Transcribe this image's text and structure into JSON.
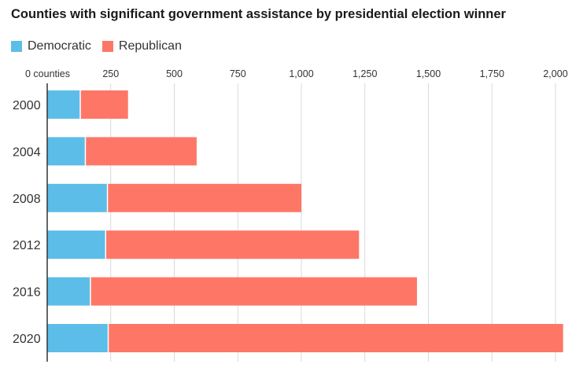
{
  "title": "Counties with significant government assistance by presidential election winner",
  "legend": [
    {
      "label": "Democratic",
      "color": "#5cbde8"
    },
    {
      "label": "Republican",
      "color": "#fe7766"
    }
  ],
  "chart_data": {
    "type": "bar",
    "orientation": "horizontal",
    "stacked": true,
    "title": "Counties with significant government assistance by presidential election winner",
    "xlabel": "",
    "ylabel": "",
    "xlim": [
      0,
      2000
    ],
    "x_ticks": [
      0,
      250,
      500,
      750,
      1000,
      1250,
      1500,
      1750,
      2000
    ],
    "x_tick_labels": [
      "0 counties",
      "250",
      "500",
      "750",
      "1,000",
      "1,250",
      "1,500",
      "1,750",
      "2,000"
    ],
    "categories": [
      "2000",
      "2004",
      "2008",
      "2012",
      "2016",
      "2020"
    ],
    "series": [
      {
        "name": "Democratic",
        "color": "#5cbde8",
        "values": [
          130,
          150,
          237,
          230,
          170,
          240
        ]
      },
      {
        "name": "Republican",
        "color": "#fe7766",
        "values": [
          188,
          438,
          763,
          997,
          1285,
          1790
        ]
      }
    ],
    "grid": true,
    "legend_position": "top-left"
  }
}
